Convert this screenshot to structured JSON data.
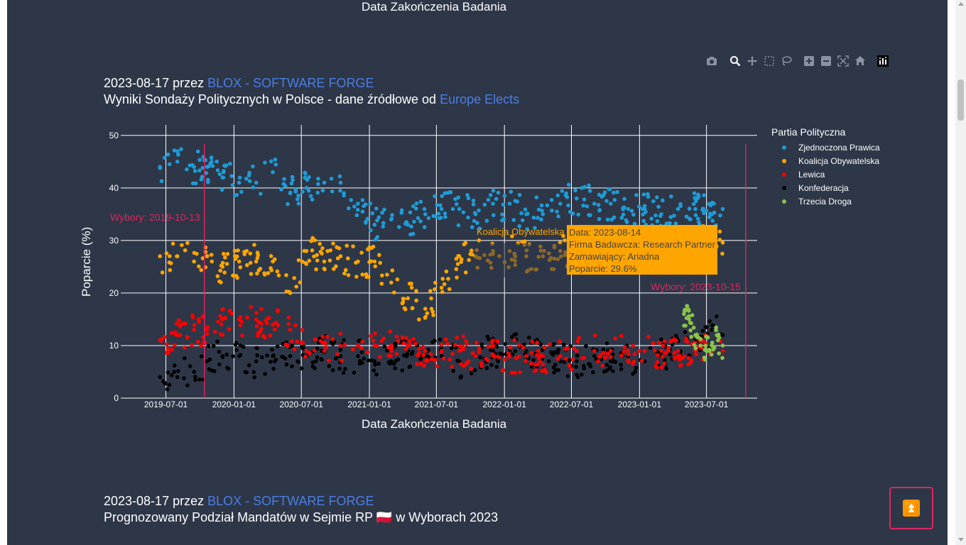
{
  "top_axis_label": "Data Zakończenia Badania",
  "toolbar": {
    "icons": [
      "camera-icon",
      "zoom-icon",
      "pan-icon",
      "box-select-icon",
      "lasso-select-icon",
      "zoom-in-icon",
      "zoom-out-icon",
      "autoscale-icon",
      "reset-axes-icon",
      "plotly-logo-icon"
    ]
  },
  "post1": {
    "date": "2023-08-17",
    "by": " przez ",
    "author": "BLOX - SOFTWARE FORGE",
    "title_prefix": "Wyniki Sondaży Politycznych w Polsce - dane źródłowe od ",
    "source": "Europe Elects"
  },
  "post2": {
    "date": "2023-08-17",
    "by": " przez ",
    "author": "BLOX - SOFTWARE FORGE",
    "title": "Prognozowany Podział Mandatów w Sejmie RP 🇵🇱 w Wyborach 2023"
  },
  "tooltip": {
    "series": "Koalicja Obywatelska",
    "line1": "Data: 2023-08-14",
    "line2": "Firma Badawcza: Research Partner",
    "line3": "Zamawiający: Ariadna",
    "line4": "Poparcie: 29.6%"
  },
  "colors": {
    "background": "#2d3748",
    "link": "#4a7ee6",
    "election_line": "#e0245e",
    "tooltip_bg": "#ffa500"
  },
  "chart_data": {
    "type": "scatter",
    "title": "",
    "xlabel": "Data Zakończenia Badania",
    "ylabel": "Poparcie (%)",
    "xlim": [
      "2019-03-01",
      "2023-11-15"
    ],
    "ylim": [
      0,
      52
    ],
    "x_ticks": [
      "2019-07-01",
      "2020-01-01",
      "2020-07-01",
      "2021-01-01",
      "2021-07-01",
      "2022-01-01",
      "2022-07-01",
      "2023-01-01",
      "2023-07-01"
    ],
    "y_ticks": [
      0,
      10,
      20,
      30,
      40,
      50
    ],
    "grid": true,
    "legend_title": "Partia Polityczna",
    "legend_position": "right",
    "annotations": [
      {
        "date": "2019-10-13",
        "label": "Wybory: 2019-10-13"
      },
      {
        "date": "2023-10-15",
        "label": "Wybory: 2023-10-15"
      }
    ],
    "series": [
      {
        "name": "Zjednoczona Prawica",
        "color": "#1f9bd6",
        "x": [
          "2019-06-15",
          "2019-08-01",
          "2019-09-15",
          "2019-10-20",
          "2019-12-01",
          "2020-01-15",
          "2020-03-01",
          "2020-04-15",
          "2020-06-01",
          "2020-07-15",
          "2020-09-01",
          "2020-10-15",
          "2020-12-01",
          "2021-01-15",
          "2021-03-01",
          "2021-04-15",
          "2021-06-01",
          "2021-07-15",
          "2021-09-01",
          "2021-10-15",
          "2021-12-01",
          "2022-01-15",
          "2022-03-01",
          "2022-04-15",
          "2022-06-01",
          "2022-07-15",
          "2022-09-01",
          "2022-10-15",
          "2022-12-01",
          "2023-01-15",
          "2023-03-01",
          "2023-04-15",
          "2023-06-01",
          "2023-07-15",
          "2023-08-14"
        ],
        "y": [
          44,
          45,
          44,
          44,
          42,
          41,
          41,
          43,
          39,
          40,
          41,
          41,
          37,
          33,
          34,
          33,
          35,
          36,
          36,
          35,
          37,
          37,
          35,
          35,
          37,
          38,
          37,
          37,
          36,
          36,
          35,
          36,
          36,
          35,
          36
        ]
      },
      {
        "name": "Koalicja Obywatelska",
        "color": "#ffa500",
        "x": [
          "2019-06-15",
          "2019-08-01",
          "2019-09-15",
          "2019-10-20",
          "2019-12-01",
          "2020-01-15",
          "2020-03-01",
          "2020-04-15",
          "2020-06-01",
          "2020-07-15",
          "2020-09-01",
          "2020-10-15",
          "2020-12-01",
          "2021-01-15",
          "2021-03-01",
          "2021-04-15",
          "2021-06-01",
          "2021-07-15",
          "2021-09-01",
          "2021-10-15",
          "2021-12-01",
          "2022-01-15",
          "2022-03-01",
          "2022-04-15",
          "2022-06-01",
          "2022-07-15",
          "2022-09-01",
          "2022-10-15",
          "2022-12-01",
          "2023-01-15",
          "2023-03-01",
          "2023-04-15",
          "2023-06-01",
          "2023-07-15",
          "2023-08-14"
        ],
        "y": [
          27,
          27,
          26,
          27,
          25,
          26,
          26,
          26,
          20,
          28,
          26,
          27,
          26,
          26,
          22,
          19,
          17,
          21,
          27,
          27,
          28,
          28,
          27,
          27,
          28,
          28,
          28,
          28,
          28,
          28,
          29,
          29,
          30,
          30,
          29.6
        ]
      },
      {
        "name": "Lewica",
        "color": "#ff0000",
        "x": [
          "2019-06-15",
          "2019-08-01",
          "2019-09-15",
          "2019-10-20",
          "2019-12-01",
          "2020-01-15",
          "2020-03-01",
          "2020-04-15",
          "2020-06-01",
          "2020-07-15",
          "2020-09-01",
          "2020-10-15",
          "2020-12-01",
          "2021-01-15",
          "2021-03-01",
          "2021-04-15",
          "2021-06-01",
          "2021-07-15",
          "2021-09-01",
          "2021-10-15",
          "2021-12-01",
          "2022-01-15",
          "2022-03-01",
          "2022-04-15",
          "2022-06-01",
          "2022-07-15",
          "2022-09-01",
          "2022-10-15",
          "2022-12-01",
          "2023-01-15",
          "2023-03-01",
          "2023-04-15",
          "2023-06-01",
          "2023-07-15",
          "2023-08-14"
        ],
        "y": [
          11,
          12,
          13,
          13,
          15,
          15,
          15,
          14,
          13,
          9,
          9,
          10,
          10,
          10,
          10,
          10,
          9,
          9,
          9,
          8,
          8,
          8,
          8,
          8,
          8,
          9,
          9,
          9,
          9,
          9,
          9,
          9,
          9,
          9,
          9
        ]
      },
      {
        "name": "Konfederacja",
        "color": "#000000",
        "x": [
          "2019-06-15",
          "2019-08-01",
          "2019-09-15",
          "2019-10-20",
          "2019-12-01",
          "2020-01-15",
          "2020-03-01",
          "2020-04-15",
          "2020-06-01",
          "2020-07-15",
          "2020-09-01",
          "2020-10-15",
          "2020-12-01",
          "2021-01-15",
          "2021-03-01",
          "2021-04-15",
          "2021-06-01",
          "2021-07-15",
          "2021-09-01",
          "2021-10-15",
          "2021-12-01",
          "2022-01-15",
          "2022-03-01",
          "2022-04-15",
          "2022-06-01",
          "2022-07-15",
          "2022-09-01",
          "2022-10-15",
          "2022-12-01",
          "2023-01-15",
          "2023-03-01",
          "2023-04-15",
          "2023-06-01",
          "2023-07-15",
          "2023-08-14"
        ],
        "y": [
          4,
          4,
          5,
          7,
          8,
          8,
          7,
          8,
          8,
          8,
          9,
          8,
          8,
          7,
          7,
          9,
          8,
          8,
          7,
          8,
          9,
          9,
          9,
          8,
          7,
          7,
          8,
          7,
          8,
          7,
          8,
          9,
          11,
          13,
          12
        ]
      },
      {
        "name": "Trzecia Droga",
        "color": "#8bc34a",
        "x": [
          "2023-05-01",
          "2023-05-15",
          "2023-06-01",
          "2023-06-15",
          "2023-07-01",
          "2023-07-15",
          "2023-08-01",
          "2023-08-14"
        ],
        "y": [
          16,
          15,
          12,
          10,
          9,
          10,
          11,
          10
        ]
      }
    ]
  }
}
